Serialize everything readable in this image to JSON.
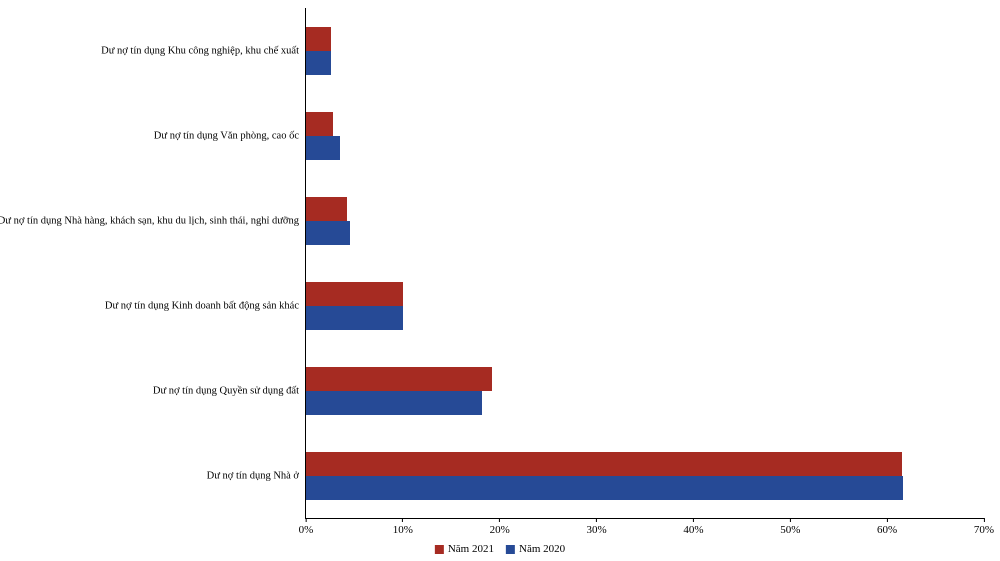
{
  "chart_data": {
    "type": "bar",
    "orientation": "horizontal",
    "title": "",
    "xlabel": "",
    "ylabel": "",
    "xlim": [
      0,
      70
    ],
    "xticks": [
      0,
      10,
      20,
      30,
      40,
      50,
      60,
      70
    ],
    "xtick_suffix": "%",
    "grid": false,
    "legend_position": "bottom",
    "categories": [
      "Dư nợ tín dụng Khu công nghiệp, khu chế xuất",
      "Dư nợ tín dụng Văn phòng, cao ốc",
      "Dư nợ tín dụng Nhà hàng, khách sạn, khu du lịch, sinh thái, nghỉ dưỡng",
      "Dư nợ tín dụng Kinh doanh bất động sản khác",
      "Dư nợ tín dụng Quyền sử dụng đất",
      "Dư nợ tín dụng Nhà ở"
    ],
    "series": [
      {
        "name": "Năm 2021",
        "color": "#a62b22",
        "values": [
          2.6,
          2.8,
          4.2,
          10.0,
          19.2,
          61.5
        ]
      },
      {
        "name": "Năm 2020",
        "color": "#264a96",
        "values": [
          2.6,
          3.5,
          4.5,
          10.0,
          18.2,
          61.6
        ]
      }
    ]
  }
}
